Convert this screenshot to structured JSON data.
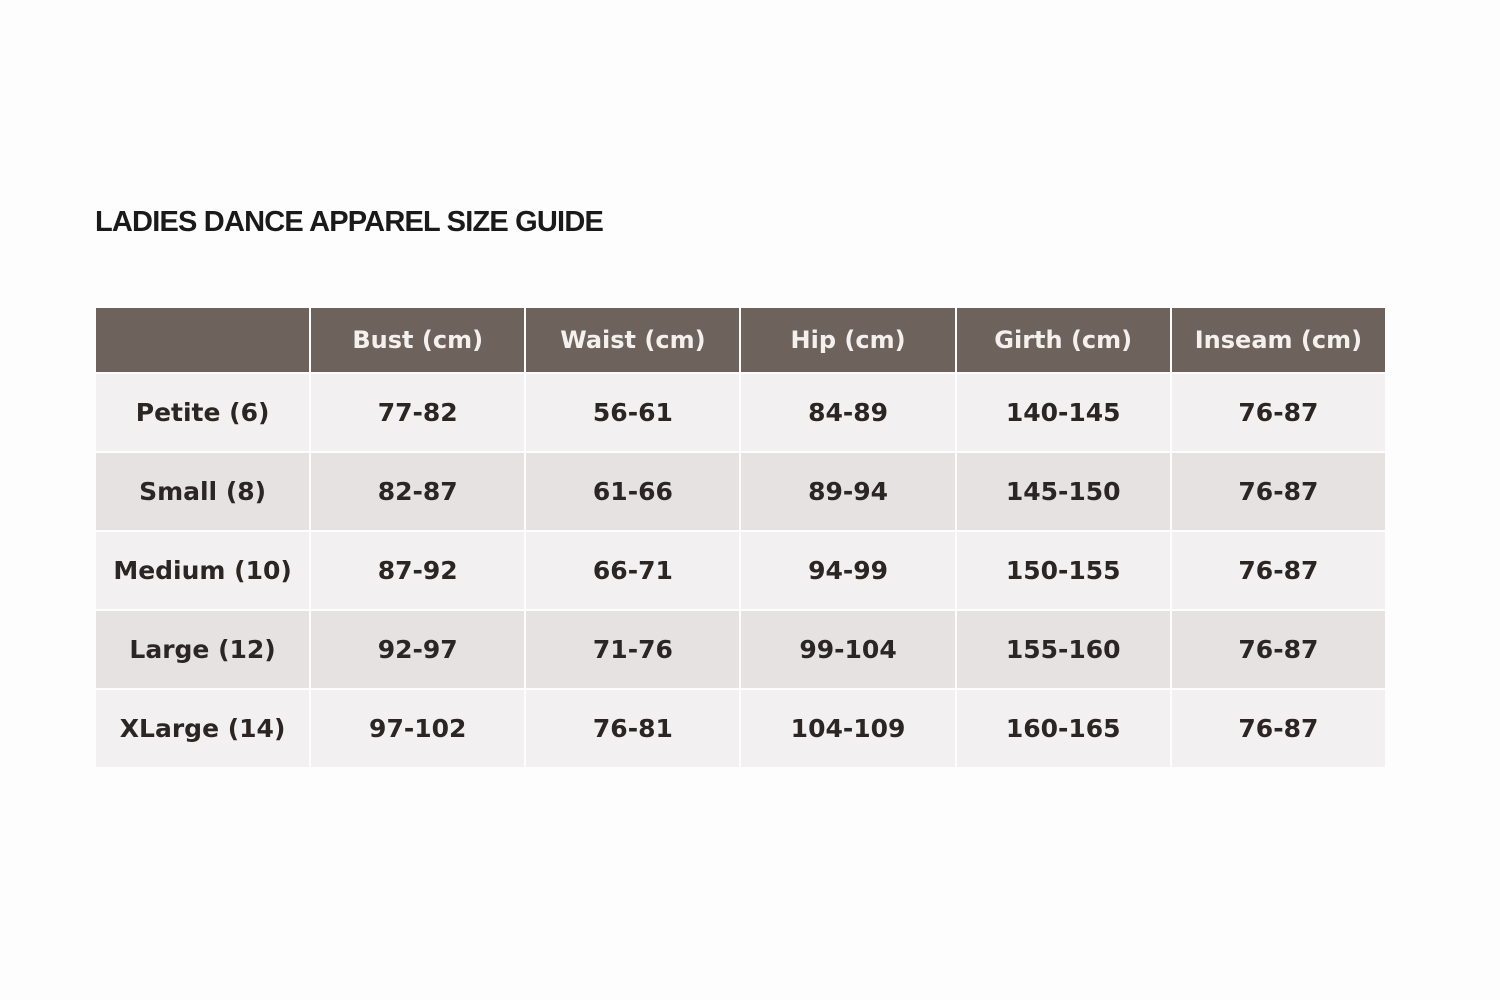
{
  "title": "LADIES DANCE APPAREL SIZE GUIDE",
  "table": {
    "header": [
      "Bust (cm)",
      "Waist (cm)",
      "Hip (cm)",
      "Girth (cm)",
      "Inseam (cm)"
    ],
    "rows": [
      [
        "Petite (6)",
        "77-82",
        "56-61",
        "84-89",
        "140-145",
        "76-87"
      ],
      [
        "Small (8)",
        "82-87",
        "61-66",
        "89-94",
        "145-150",
        "76-87"
      ],
      [
        "Medium (10)",
        "87-92",
        "66-71",
        "94-99",
        "150-155",
        "76-87"
      ],
      [
        "Large (12)",
        "92-97",
        "71-76",
        "99-104",
        "155-160",
        "76-87"
      ],
      [
        "XLarge (14)",
        "97-102",
        "76-81",
        "104-109",
        "160-165",
        "76-87"
      ]
    ]
  }
}
